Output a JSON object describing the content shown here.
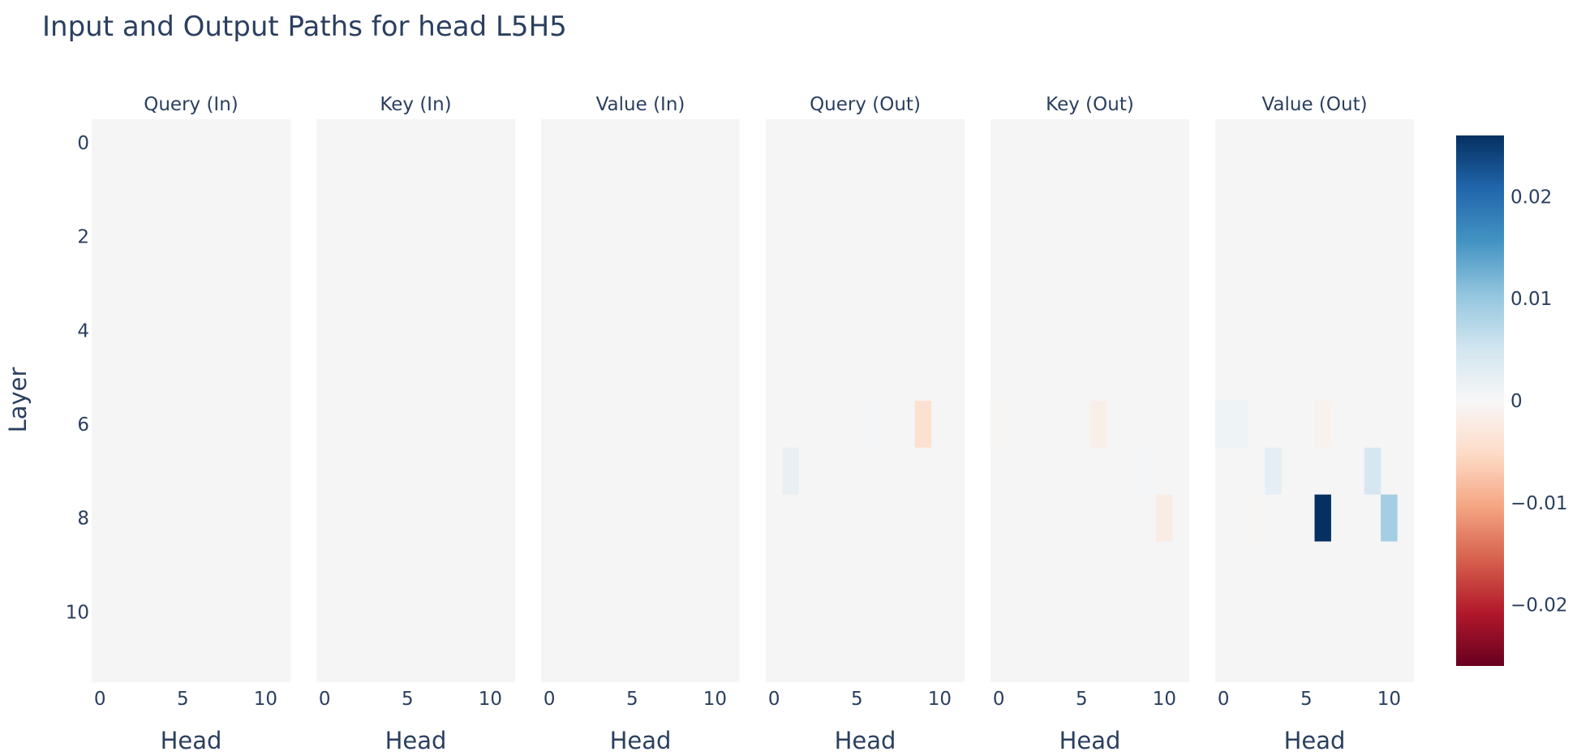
{
  "chart_data": {
    "type": "heatmap",
    "title": "Input and Output Paths for head L5H5",
    "ylabel": "Layer",
    "xlabel": "Head",
    "panels": [
      {
        "title": "Query (In)",
        "cells": []
      },
      {
        "title": "Key (In)",
        "cells": []
      },
      {
        "title": "Value (In)",
        "cells": []
      },
      {
        "title": "Query (Out)",
        "cells": [
          {
            "layer": 6,
            "head": 6,
            "value": 0.0005
          },
          {
            "layer": 6,
            "head": 9,
            "value": -0.004
          },
          {
            "layer": 7,
            "head": 1,
            "value": 0.002
          }
        ]
      },
      {
        "title": "Key (Out)",
        "cells": [
          {
            "layer": 6,
            "head": 0,
            "value": -0.0003
          },
          {
            "layer": 6,
            "head": 6,
            "value": -0.0015
          },
          {
            "layer": 7,
            "head": 9,
            "value": 0.0006
          },
          {
            "layer": 8,
            "head": 10,
            "value": -0.002
          }
        ]
      },
      {
        "title": "Value (Out)",
        "cells": [
          {
            "layer": 6,
            "head": 0,
            "value": 0.0012
          },
          {
            "layer": 6,
            "head": 1,
            "value": 0.0012
          },
          {
            "layer": 6,
            "head": 6,
            "value": -0.0012
          },
          {
            "layer": 7,
            "head": 3,
            "value": 0.0025
          },
          {
            "layer": 7,
            "head": 9,
            "value": 0.0045
          },
          {
            "layer": 8,
            "head": 2,
            "value": -0.0003
          },
          {
            "layer": 8,
            "head": 6,
            "value": 0.026
          },
          {
            "layer": 8,
            "head": 10,
            "value": 0.009
          }
        ]
      }
    ],
    "x_range": [
      -0.5,
      11.5
    ],
    "y_range": [
      -0.5,
      11.5
    ],
    "x_ticks": [
      0,
      5,
      10
    ],
    "y_ticks": [
      0,
      2,
      4,
      6,
      8,
      10
    ],
    "zmin": -0.026,
    "zmax": 0.026,
    "colorbar": {
      "ticks": [
        0.02,
        0.01,
        0,
        -0.01,
        -0.02
      ],
      "tick_labels": [
        "0.02",
        "0.01",
        "0",
        "−0.01",
        "−0.02"
      ]
    },
    "colorscale": [
      "#67001f",
      "#b2182b",
      "#d6604d",
      "#f4a582",
      "#fddbc7",
      "#f7f7f7",
      "#d1e5f0",
      "#92c5de",
      "#4393c3",
      "#2166ac",
      "#053061"
    ],
    "background_cell_color": "#f5f5f5"
  }
}
